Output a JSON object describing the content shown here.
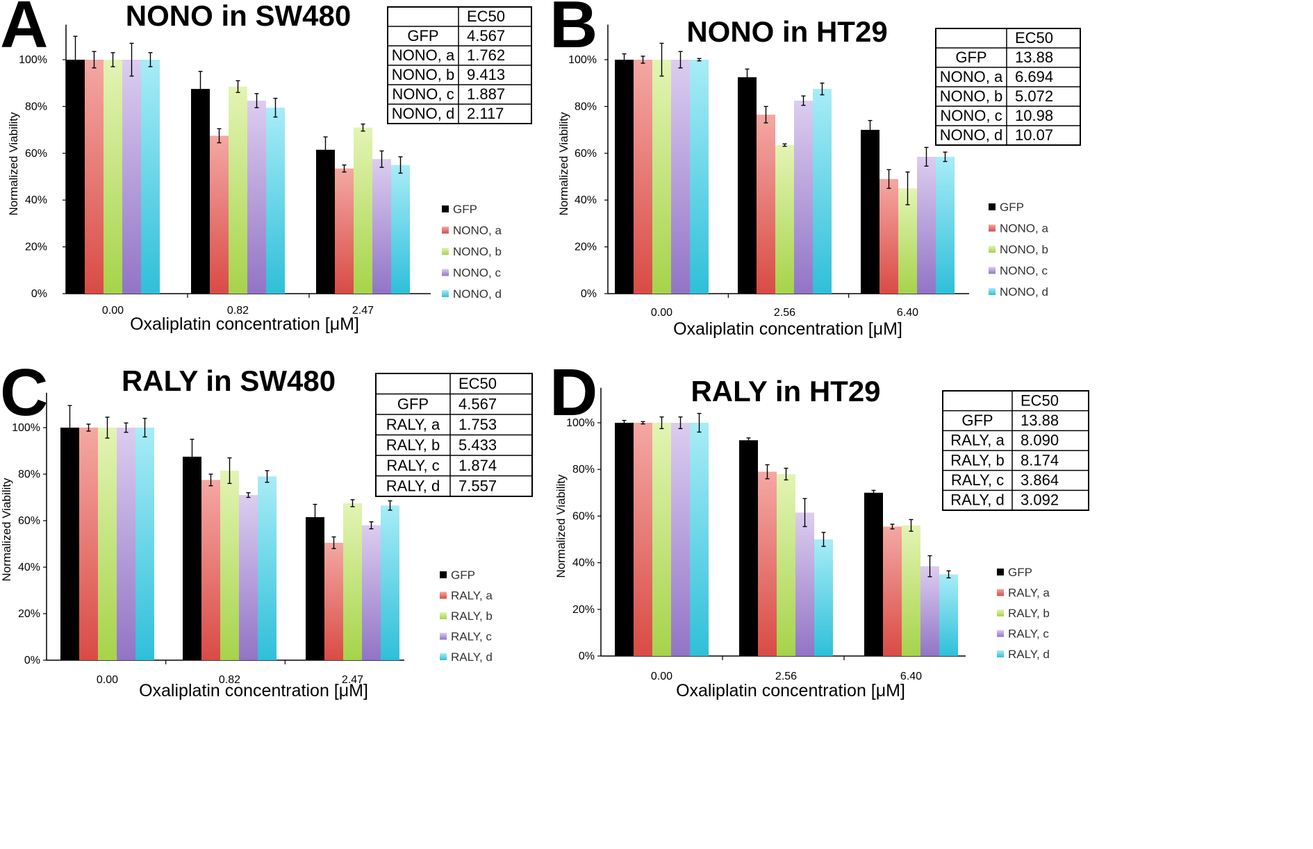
{
  "colors": {
    "GFP": "#000000",
    "a": [
      "#f4a8a3",
      "#d94b45"
    ],
    "b": [
      "#e3f4b4",
      "#a6d34a"
    ],
    "c": [
      "#dccdf0",
      "#9274c6"
    ],
    "d": [
      "#a8ecf7",
      "#2fbfd9"
    ]
  },
  "chart_data": [
    {
      "panel": "A",
      "type": "bar",
      "title": "NONO in SW480",
      "xlabel": "Oxaliplatin concentration [μM]",
      "ylabel": "Normalized Viability",
      "ylim": [
        0,
        100
      ],
      "yticks": [
        "0%",
        "20%",
        "40%",
        "60%",
        "80%",
        "100%"
      ],
      "categories": [
        "0.00",
        "0.82",
        "2.47"
      ],
      "series": [
        {
          "name": "GFP",
          "key": "GFP",
          "values": [
            100,
            87.5,
            61.5
          ],
          "errors": [
            10,
            7.5,
            5.5
          ]
        },
        {
          "name": "NONO, a",
          "key": "a",
          "values": [
            100,
            67.5,
            53.5
          ],
          "errors": [
            3.5,
            3,
            1.5
          ]
        },
        {
          "name": "NONO, b",
          "key": "b",
          "values": [
            100,
            88.5,
            71
          ],
          "errors": [
            3,
            2.5,
            1.5
          ]
        },
        {
          "name": "NONO, c",
          "key": "c",
          "values": [
            100,
            82.5,
            57.5
          ],
          "errors": [
            7,
            3,
            3.5
          ]
        },
        {
          "name": "NONO, d",
          "key": "d",
          "values": [
            100,
            79.5,
            55
          ],
          "errors": [
            3,
            4,
            3.5
          ]
        }
      ],
      "legend_position": "right",
      "table": {
        "header": [
          "",
          "EC50"
        ],
        "rows": [
          [
            "GFP",
            "4.567"
          ],
          [
            "NONO, a",
            "1.762"
          ],
          [
            "NONO, b",
            "9.413"
          ],
          [
            "NONO, c",
            "1.887"
          ],
          [
            "NONO, d",
            "2.117"
          ]
        ]
      }
    },
    {
      "panel": "B",
      "type": "bar",
      "title": "NONO in HT29",
      "xlabel": "Oxaliplatin concentration [μM]",
      "ylabel": "Normalized Viability",
      "ylim": [
        0,
        100
      ],
      "yticks": [
        "0%",
        "20%",
        "40%",
        "60%",
        "80%",
        "100%"
      ],
      "categories": [
        "0.00",
        "2.56",
        "6.40"
      ],
      "series": [
        {
          "name": "GFP",
          "key": "GFP",
          "values": [
            100,
            92.5,
            70
          ],
          "errors": [
            2.5,
            3.5,
            4
          ]
        },
        {
          "name": "NONO, a",
          "key": "a",
          "values": [
            100,
            76.5,
            49
          ],
          "errors": [
            1.5,
            3.5,
            4
          ]
        },
        {
          "name": "NONO, b",
          "key": "b",
          "values": [
            100,
            63.5,
            45
          ],
          "errors": [
            7,
            0.5,
            7
          ]
        },
        {
          "name": "NONO, c",
          "key": "c",
          "values": [
            100,
            82.5,
            58.5
          ],
          "errors": [
            3.5,
            2,
            4
          ]
        },
        {
          "name": "NONO, d",
          "key": "d",
          "values": [
            100,
            87.5,
            58.5
          ],
          "errors": [
            0.5,
            2.5,
            2
          ]
        }
      ],
      "legend_position": "right",
      "table": {
        "header": [
          "",
          "EC50"
        ],
        "rows": [
          [
            "GFP",
            "13.88"
          ],
          [
            "NONO, a",
            "6.694"
          ],
          [
            "NONO, b",
            "5.072"
          ],
          [
            "NONO, c",
            "10.98"
          ],
          [
            "NONO, d",
            "10.07"
          ]
        ]
      }
    },
    {
      "panel": "C",
      "type": "bar",
      "title": "RALY in SW480",
      "xlabel": "Oxaliplatin concentration [μM]",
      "ylabel": "Normalized Viability",
      "ylim": [
        0,
        100
      ],
      "yticks": [
        "0%",
        "20%",
        "40%",
        "60%",
        "80%",
        "100%"
      ],
      "categories": [
        "0.00",
        "0.82",
        "2.47"
      ],
      "series": [
        {
          "name": "GFP",
          "key": "GFP",
          "values": [
            100,
            87.5,
            61.5
          ],
          "errors": [
            9.5,
            7.5,
            5.5
          ]
        },
        {
          "name": "RALY, a",
          "key": "a",
          "values": [
            100,
            77.5,
            50.5
          ],
          "errors": [
            1.5,
            2.5,
            2.5
          ]
        },
        {
          "name": "RALY, b",
          "key": "b",
          "values": [
            100,
            81.5,
            67.5
          ],
          "errors": [
            4.5,
            5.5,
            1.5
          ]
        },
        {
          "name": "RALY, c",
          "key": "c",
          "values": [
            100,
            71,
            58
          ],
          "errors": [
            2,
            1,
            1.5
          ]
        },
        {
          "name": "RALY, d",
          "key": "d",
          "values": [
            100,
            79,
            66.5
          ],
          "errors": [
            4,
            2.5,
            2
          ]
        }
      ],
      "legend_position": "right",
      "table": {
        "header": [
          "",
          "EC50"
        ],
        "rows": [
          [
            "GFP",
            "4.567"
          ],
          [
            "RALY, a",
            "1.753"
          ],
          [
            "RALY, b",
            "5.433"
          ],
          [
            "RALY, c",
            "1.874"
          ],
          [
            "RALY, d",
            "7.557"
          ]
        ]
      }
    },
    {
      "panel": "D",
      "type": "bar",
      "title": "RALY in HT29",
      "xlabel": "Oxaliplatin concentration [μM]",
      "ylabel": "Normalized Viability",
      "ylim": [
        0,
        100
      ],
      "yticks": [
        "0%",
        "20%",
        "40%",
        "60%",
        "80%",
        "100%"
      ],
      "categories": [
        "0.00",
        "2.56",
        "6.40"
      ],
      "series": [
        {
          "name": "GFP",
          "key": "GFP",
          "values": [
            100,
            92.5,
            70
          ],
          "errors": [
            1,
            1,
            1
          ]
        },
        {
          "name": "RALY, a",
          "key": "a",
          "values": [
            100,
            79,
            55.5
          ],
          "errors": [
            0.5,
            3,
            1
          ]
        },
        {
          "name": "RALY, b",
          "key": "b",
          "values": [
            100,
            78,
            56
          ],
          "errors": [
            2.5,
            2.5,
            2.5
          ]
        },
        {
          "name": "RALY, c",
          "key": "c",
          "values": [
            100,
            61.5,
            38.5
          ],
          "errors": [
            2.5,
            6,
            4.5
          ]
        },
        {
          "name": "RALY, d",
          "key": "d",
          "values": [
            100,
            50,
            35
          ],
          "errors": [
            4,
            3,
            1.5
          ]
        }
      ],
      "legend_position": "right",
      "table": {
        "header": [
          "",
          "EC50"
        ],
        "rows": [
          [
            "GFP",
            "13.88"
          ],
          [
            "RALY, a",
            "8.090"
          ],
          [
            "RALY, b",
            "8.174"
          ],
          [
            "RALY, c",
            "3.864"
          ],
          [
            "RALY, d",
            "3.092"
          ]
        ]
      }
    }
  ]
}
